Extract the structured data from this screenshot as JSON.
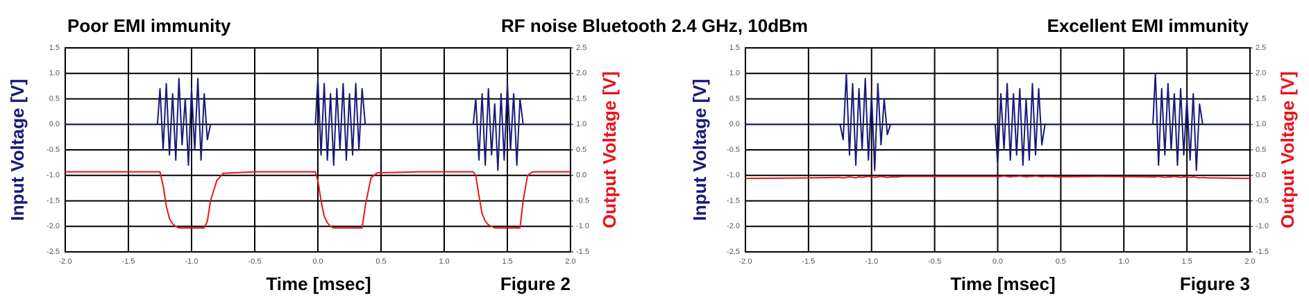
{
  "heading": "RF noise Bluetooth 2.4 GHz, 10dBm",
  "chart_data": [
    {
      "type": "line",
      "title": "Poor EMI immunity",
      "xlabel": "Time [msec]",
      "ylabel": "Input Voltage [V]",
      "y2label": "Output Voltage [V]",
      "caption": "Figure 2",
      "xlim": [
        -2,
        2
      ],
      "xticks": [
        {
          "value": -2,
          "label": "-2.0"
        },
        -1.5,
        {
          "value": -1,
          "label": "-1.0"
        },
        -0.5,
        {
          "value": 0,
          "label": "0.0"
        },
        0.5,
        {
          "value": 1,
          "label": "1.0"
        },
        1.5,
        {
          "value": 2,
          "label": "2.0"
        }
      ],
      "ylim": [
        -2.5,
        1.5
      ],
      "yticks": [
        -2.5,
        {
          "value": -2,
          "label": "-2.0"
        },
        -1.5,
        {
          "value": -1,
          "label": "-1.0"
        },
        -0.5,
        {
          "value": 0,
          "label": "0.0"
        },
        0.5,
        {
          "value": 1,
          "label": "1.0"
        },
        1.5
      ],
      "y2lim": [
        -1.5,
        2.5
      ],
      "y2ticks": [
        -1.5,
        {
          "value": -1,
          "label": "-1.0"
        },
        -0.5,
        {
          "value": 0,
          "label": "0.0"
        },
        0.5,
        {
          "value": 1,
          "label": "1.0"
        },
        1.5,
        {
          "value": 2,
          "label": "2.0"
        },
        2.5
      ],
      "grid": true,
      "x": [
        -2.0,
        -1.5,
        -1.27,
        -1.25,
        -1.225,
        -1.2,
        -1.175,
        -1.15,
        -1.125,
        -1.1,
        -1.075,
        -1.05,
        -1.025,
        -1.0,
        -0.975,
        -0.95,
        -0.925,
        -0.9,
        -0.875,
        -0.85,
        -0.8,
        -0.75,
        -0.5,
        -0.02,
        0.0,
        0.025,
        0.05,
        0.075,
        0.1,
        0.125,
        0.15,
        0.175,
        0.2,
        0.225,
        0.25,
        0.275,
        0.3,
        0.325,
        0.35,
        0.375,
        0.42,
        0.47,
        0.8,
        1.23,
        1.25,
        1.275,
        1.3,
        1.325,
        1.35,
        1.375,
        1.4,
        1.425,
        1.45,
        1.475,
        1.5,
        1.525,
        1.55,
        1.575,
        1.6,
        1.625,
        1.66,
        1.7,
        2.0
      ],
      "series": [
        {
          "color": "#1a1a78",
          "values": [
            0,
            0,
            0,
            0.7,
            -0.5,
            0.8,
            -0.6,
            0.6,
            -0.7,
            0.9,
            -0.4,
            0.5,
            -0.8,
            0.7,
            -0.5,
            0.9,
            -0.7,
            0.6,
            -0.3,
            0,
            0,
            0,
            0,
            0,
            0.9,
            -0.6,
            0.8,
            -0.7,
            0.6,
            -0.8,
            0.7,
            -0.5,
            0.8,
            -0.7,
            0.6,
            -0.6,
            0.8,
            -0.5,
            0.7,
            0,
            0,
            0,
            0,
            0,
            0.5,
            -0.7,
            0.6,
            -0.8,
            0.7,
            -0.6,
            0.4,
            -0.9,
            0.6,
            -0.7,
            0.8,
            -0.5,
            0.6,
            -0.8,
            0.5,
            0,
            0,
            0,
            0
          ]
        },
        {
          "color": "#e8141c",
          "axis": "y2",
          "values": [
            0.07,
            0.07,
            0.07,
            0.07,
            -0.2,
            -0.6,
            -0.85,
            -0.95,
            -1.0,
            -1.03,
            -1.03,
            -1.03,
            -1.03,
            -1.03,
            -1.03,
            -1.03,
            -1.03,
            -1.03,
            -0.9,
            -0.5,
            -0.1,
            0.04,
            0.07,
            0.07,
            -0.1,
            -0.5,
            -0.8,
            -0.93,
            -1.0,
            -1.03,
            -1.03,
            -1.03,
            -1.03,
            -1.03,
            -1.03,
            -1.03,
            -1.03,
            -1.03,
            -1.03,
            -0.6,
            -0.05,
            0.05,
            0.07,
            0.07,
            0.0,
            -0.4,
            -0.75,
            -0.9,
            -0.97,
            -1.0,
            -1.03,
            -1.03,
            -1.03,
            -1.03,
            -1.03,
            -1.03,
            -1.03,
            -1.03,
            -1.03,
            -0.5,
            0.0,
            0.07,
            0.07
          ]
        }
      ]
    },
    {
      "type": "line",
      "title": "Excellent EMI immunity",
      "xlabel": "Time [msec]",
      "ylabel": "Input Voltage [V]",
      "y2label": "Output Voltage [V]",
      "caption": "Figure 3",
      "xlim": [
        -2,
        2
      ],
      "xticks": [
        {
          "value": -2,
          "label": "-2.0"
        },
        -1.5,
        {
          "value": -1,
          "label": "-1.0"
        },
        -0.5,
        {
          "value": 0,
          "label": "0.0"
        },
        0.5,
        {
          "value": 1,
          "label": "1.0"
        },
        1.5,
        {
          "value": 2,
          "label": "2.0"
        }
      ],
      "ylim": [
        -2.5,
        1.5
      ],
      "yticks": [
        -2.5,
        {
          "value": -2,
          "label": "-2.0"
        },
        -1.5,
        {
          "value": -1,
          "label": "-1.0"
        },
        -0.5,
        {
          "value": 0,
          "label": "0.0"
        },
        0.5,
        {
          "value": 1,
          "label": "1.0"
        },
        1.5
      ],
      "y2lim": [
        -1.5,
        2.5
      ],
      "y2ticks": [
        -1.5,
        {
          "value": -1,
          "label": "-1.0"
        },
        -0.5,
        {
          "value": 0,
          "label": "0.0"
        },
        0.5,
        {
          "value": 1,
          "label": "1.0"
        },
        1.5,
        {
          "value": 2,
          "label": "2.0"
        },
        2.5
      ],
      "grid": true,
      "x": [
        -2.0,
        -1.5,
        -1.27,
        -1.25,
        -1.225,
        -1.2,
        -1.175,
        -1.15,
        -1.125,
        -1.1,
        -1.075,
        -1.05,
        -1.025,
        -1.0,
        -0.975,
        -0.95,
        -0.925,
        -0.9,
        -0.875,
        -0.85,
        -0.8,
        -0.75,
        -0.5,
        -0.02,
        0.0,
        0.025,
        0.05,
        0.075,
        0.1,
        0.125,
        0.15,
        0.175,
        0.2,
        0.225,
        0.25,
        0.275,
        0.3,
        0.325,
        0.35,
        0.375,
        0.42,
        0.47,
        0.8,
        1.23,
        1.25,
        1.275,
        1.3,
        1.325,
        1.35,
        1.375,
        1.4,
        1.425,
        1.45,
        1.475,
        1.5,
        1.525,
        1.55,
        1.575,
        1.6,
        1.625,
        1.66,
        1.7,
        2.0
      ],
      "series": [
        {
          "color": "#1a1a78",
          "values": [
            0,
            0,
            0,
            0,
            -0.3,
            1.0,
            -0.6,
            0.8,
            -0.8,
            0.7,
            -0.5,
            0.9,
            -0.7,
            0.6,
            -0.9,
            0.8,
            -0.4,
            0.5,
            -0.2,
            0,
            0,
            0,
            0,
            0,
            -0.8,
            0.6,
            -0.5,
            0.8,
            -0.7,
            0.6,
            -0.6,
            0.7,
            -0.8,
            0.5,
            -0.7,
            0.8,
            -0.6,
            0.7,
            -0.4,
            0,
            0,
            0,
            0,
            0,
            1.0,
            -0.8,
            0.7,
            -0.6,
            0.8,
            -0.5,
            0.6,
            -0.8,
            0.7,
            -0.6,
            0.5,
            -0.7,
            0.6,
            -0.9,
            0.4,
            0,
            0,
            0,
            0
          ]
        },
        {
          "color": "#e8141c",
          "axis": "y2",
          "values": [
            -0.06,
            -0.05,
            -0.04,
            -0.04,
            -0.05,
            -0.04,
            -0.03,
            -0.04,
            -0.05,
            -0.03,
            -0.04,
            -0.03,
            -0.02,
            -0.03,
            -0.04,
            -0.03,
            -0.02,
            -0.03,
            -0.04,
            -0.03,
            -0.03,
            -0.02,
            -0.02,
            -0.02,
            -0.03,
            -0.02,
            -0.01,
            -0.02,
            -0.03,
            -0.02,
            -0.02,
            -0.01,
            -0.02,
            -0.03,
            -0.02,
            -0.02,
            -0.01,
            -0.02,
            -0.03,
            -0.02,
            -0.02,
            -0.03,
            -0.02,
            -0.03,
            -0.03,
            -0.02,
            -0.03,
            -0.04,
            -0.03,
            -0.03,
            -0.02,
            -0.03,
            -0.04,
            -0.03,
            -0.03,
            -0.04,
            -0.03,
            -0.04,
            -0.05,
            -0.04,
            -0.05,
            -0.05,
            -0.06
          ]
        }
      ]
    }
  ]
}
